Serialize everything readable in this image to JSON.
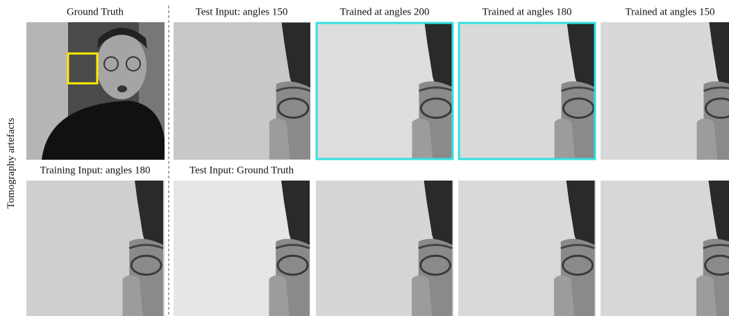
{
  "figure": {
    "row_label": "Tomography artefacts",
    "rows": [
      {
        "captions": [
          "Ground Truth",
          "Test Input: angles 150",
          "Trained at angles 200",
          "Trained at angles 180",
          "Trained at angles 150"
        ]
      },
      {
        "captions": [
          "Training Input: angles 180",
          "Test Input: Ground Truth"
        ]
      }
    ]
  }
}
